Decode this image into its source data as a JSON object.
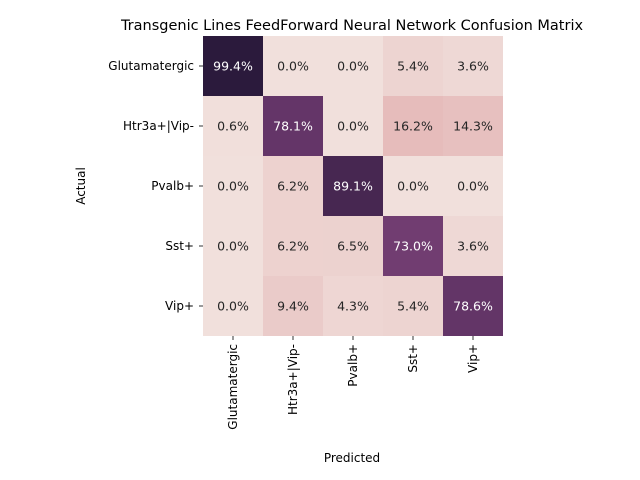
{
  "chart_data": {
    "type": "heatmap",
    "title": "Transgenic Lines FeedForward Neural Network Confusion Matrix",
    "xlabel": "Predicted",
    "ylabel": "Actual",
    "x_categories": [
      "Glutamatergic",
      "Htr3a+|Vip-",
      "Pvalb+",
      "Sst+",
      "Vip+"
    ],
    "y_categories": [
      "Glutamatergic",
      "Htr3a+|Vip-",
      "Pvalb+",
      "Sst+",
      "Vip+"
    ],
    "values": [
      [
        99.4,
        0.0,
        0.0,
        5.4,
        3.6
      ],
      [
        0.6,
        78.1,
        0.0,
        16.2,
        14.3
      ],
      [
        0.0,
        6.2,
        89.1,
        0.0,
        0.0
      ],
      [
        0.0,
        6.2,
        6.5,
        73.0,
        3.6
      ],
      [
        0.0,
        9.4,
        4.3,
        5.4,
        78.6
      ]
    ],
    "value_format": "percent_1dp",
    "colorbar": false,
    "grid": false,
    "colors": {
      "low": "#f1e0dc",
      "mid": "#e3b4b3",
      "high": "#6e3a6f",
      "max": "#2b1a3c",
      "text_dark": "#262626",
      "text_light": "#ffffff"
    }
  }
}
